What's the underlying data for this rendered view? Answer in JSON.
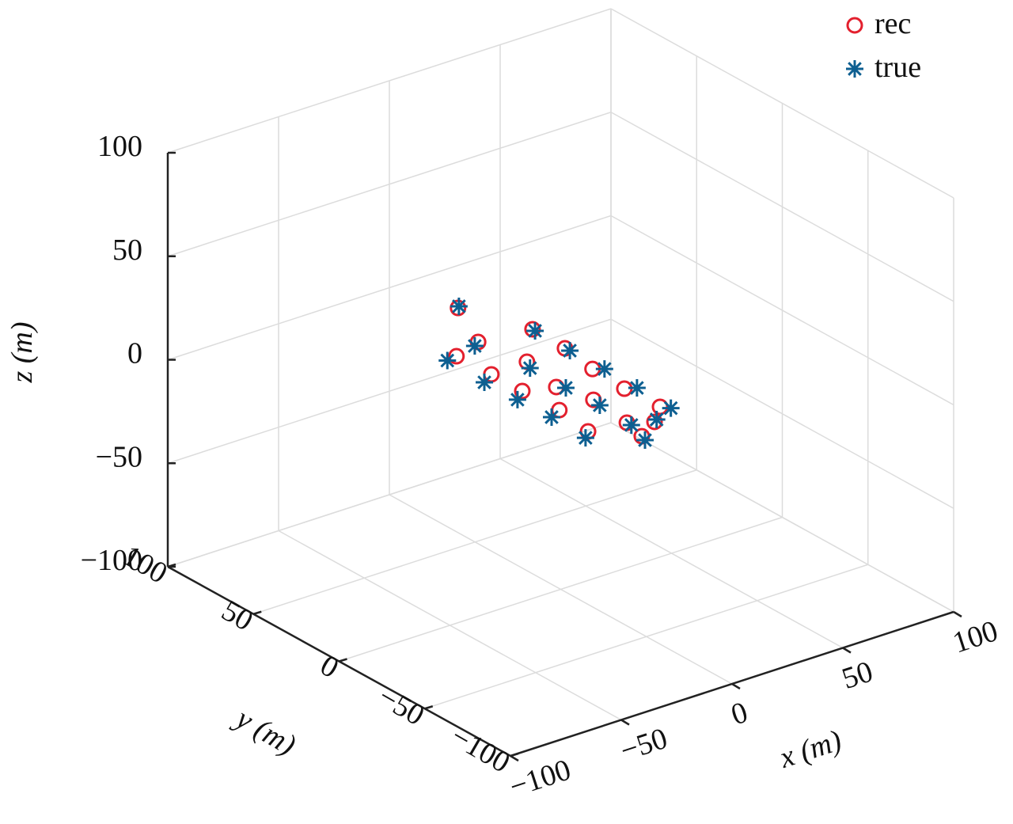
{
  "chart_data": {
    "type": "scatter3d",
    "xlabel": "x (m)",
    "ylabel": "y (m)",
    "zlabel": "z (m)",
    "xlim": [
      -100,
      100
    ],
    "ylim": [
      -100,
      100
    ],
    "zlim": [
      -100,
      100
    ],
    "xticks": [
      {
        "value": -100,
        "label": "−100"
      },
      {
        "value": -50,
        "label": "−50"
      },
      0,
      50,
      100
    ],
    "yticks": [
      {
        "value": -100,
        "label": "−100"
      },
      {
        "value": -50,
        "label": "−50"
      },
      0,
      50,
      100
    ],
    "zticks": [
      {
        "value": -100,
        "label": "−100"
      },
      {
        "value": -50,
        "label": "−50"
      },
      0,
      50,
      100
    ],
    "grid": true,
    "legend": "upper right",
    "series": [
      {
        "name": "rec",
        "color": "#e3202e",
        "marker": "o",
        "x": [
          9.1,
          -2.7,
          -16.2,
          -15.6,
          19.3,
          18.7,
          1,
          15.9,
          -3.7,
          -15.4,
          14.8,
          0.3,
          -14.7,
          15.6,
          -2,
          6.3,
          -17.5,
          -4.7
        ],
        "y": [
          71.7,
          44.7,
          39.9,
          20.3,
          41.4,
          21.7,
          21,
          2,
          -2.2,
          2.5,
          -18,
          -18.7,
          -18.2,
          -37.8,
          -41.2,
          -46.6,
          -38.6,
          -53.4
        ],
        "z": [
          0,
          0,
          0,
          0,
          0,
          0,
          0,
          0,
          0,
          0,
          0,
          0,
          0,
          0,
          0,
          0,
          0,
          0
        ]
      },
      {
        "name": "true",
        "color": "#0d5f91",
        "marker": "*",
        "x": [
          10.2,
          -5.7,
          -21,
          -21.7,
          19.2,
          18.9,
          -1.4,
          19.3,
          -1.4,
          -21.2,
          18.8,
          -0.7,
          -20.5,
          18,
          -1.9,
          8.1,
          -21.5,
          -5.8
        ],
        "y": [
          72.6,
          42.8,
          39,
          16.5,
          39.8,
          19.1,
          16.1,
          -0.6,
          -4.8,
          -2.2,
          -20.2,
          -23.7,
          -21.2,
          -41,
          -43.7,
          -45.5,
          -42.3,
          -56.7
        ],
        "z": [
          0,
          0,
          0,
          0,
          0,
          0,
          0,
          0,
          0,
          0,
          0,
          0,
          0,
          0,
          0,
          0,
          0,
          0
        ]
      }
    ]
  }
}
